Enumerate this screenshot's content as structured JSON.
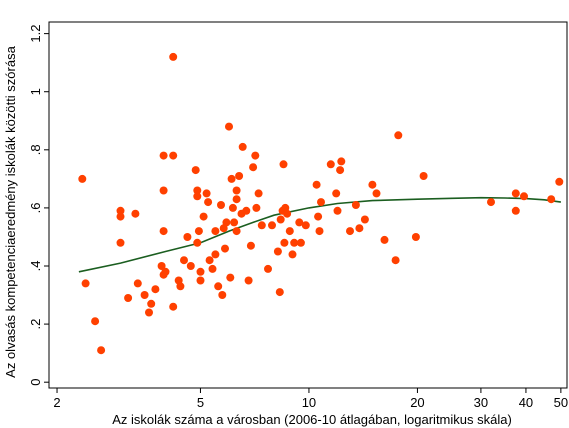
{
  "chart_data": {
    "type": "scatter",
    "title": "",
    "xlabel": "Az iskolák száma a városban (2006-10 átlagában, logaritmikus skála)",
    "ylabel": "Az olvasás kompetenciaeredmény iskolák közötti szórása",
    "x_scale": "log",
    "xlim": [
      1.9,
      52
    ],
    "ylim": [
      -0.02,
      1.24
    ],
    "x_ticks": [
      2,
      5,
      10,
      20,
      30,
      40,
      50
    ],
    "x_tick_labels": [
      "2",
      "5",
      "10",
      "20",
      "30",
      "40",
      "50"
    ],
    "y_ticks": [
      0,
      0.2,
      0.4,
      0.6,
      0.8,
      1,
      1.2
    ],
    "y_tick_labels": [
      "0",
      ".2",
      ".4",
      ".6",
      ".8",
      "1",
      "1.2"
    ],
    "grid": false,
    "legend": "none",
    "marker_color": "#ff4000",
    "fit_color": "#1b5e20",
    "series": [
      {
        "kind": "points",
        "points": [
          [
            2.35,
            0.7
          ],
          [
            2.4,
            0.34
          ],
          [
            2.55,
            0.21
          ],
          [
            2.65,
            0.11
          ],
          [
            3.0,
            0.59
          ],
          [
            3.0,
            0.57
          ],
          [
            3.0,
            0.48
          ],
          [
            3.15,
            0.29
          ],
          [
            3.3,
            0.58
          ],
          [
            3.35,
            0.34
          ],
          [
            3.5,
            0.3
          ],
          [
            3.6,
            0.24
          ],
          [
            3.65,
            0.27
          ],
          [
            3.75,
            0.32
          ],
          [
            3.9,
            0.4
          ],
          [
            3.95,
            0.78
          ],
          [
            3.95,
            0.66
          ],
          [
            3.95,
            0.37
          ],
          [
            3.95,
            0.52
          ],
          [
            4.0,
            0.38
          ],
          [
            4.2,
            1.12
          ],
          [
            4.2,
            0.78
          ],
          [
            4.2,
            0.26
          ],
          [
            4.35,
            0.35
          ],
          [
            4.4,
            0.33
          ],
          [
            4.5,
            0.42
          ],
          [
            4.6,
            0.5
          ],
          [
            4.7,
            0.4
          ],
          [
            4.85,
            0.73
          ],
          [
            4.9,
            0.66
          ],
          [
            4.9,
            0.64
          ],
          [
            4.9,
            0.48
          ],
          [
            4.95,
            0.52
          ],
          [
            5.0,
            0.38
          ],
          [
            5.0,
            0.35
          ],
          [
            5.1,
            0.57
          ],
          [
            5.2,
            0.65
          ],
          [
            5.25,
            0.62
          ],
          [
            5.3,
            0.42
          ],
          [
            5.4,
            0.39
          ],
          [
            5.5,
            0.52
          ],
          [
            5.5,
            0.44
          ],
          [
            5.6,
            0.33
          ],
          [
            5.7,
            0.61
          ],
          [
            5.75,
            0.3
          ],
          [
            5.8,
            0.53
          ],
          [
            5.85,
            0.46
          ],
          [
            5.9,
            0.55
          ],
          [
            6.0,
            0.88
          ],
          [
            6.05,
            0.36
          ],
          [
            6.1,
            0.7
          ],
          [
            6.15,
            0.6
          ],
          [
            6.2,
            0.55
          ],
          [
            6.3,
            0.66
          ],
          [
            6.3,
            0.63
          ],
          [
            6.3,
            0.52
          ],
          [
            6.4,
            0.71
          ],
          [
            6.5,
            0.58
          ],
          [
            6.55,
            0.81
          ],
          [
            6.7,
            0.59
          ],
          [
            6.8,
            0.35
          ],
          [
            6.9,
            0.47
          ],
          [
            7.0,
            0.74
          ],
          [
            7.1,
            0.78
          ],
          [
            7.15,
            0.6
          ],
          [
            7.25,
            0.65
          ],
          [
            7.4,
            0.54
          ],
          [
            7.7,
            0.39
          ],
          [
            7.9,
            0.54
          ],
          [
            8.2,
            0.45
          ],
          [
            8.3,
            0.31
          ],
          [
            8.35,
            0.56
          ],
          [
            8.45,
            0.59
          ],
          [
            8.5,
            0.75
          ],
          [
            8.55,
            0.48
          ],
          [
            8.6,
            0.6
          ],
          [
            8.7,
            0.58
          ],
          [
            8.85,
            0.52
          ],
          [
            9.0,
            0.44
          ],
          [
            9.1,
            0.48
          ],
          [
            9.4,
            0.55
          ],
          [
            9.5,
            0.48
          ],
          [
            9.8,
            0.54
          ],
          [
            10.5,
            0.68
          ],
          [
            10.6,
            0.57
          ],
          [
            10.7,
            0.52
          ],
          [
            10.8,
            0.62
          ],
          [
            11.5,
            0.75
          ],
          [
            11.9,
            0.65
          ],
          [
            12.0,
            0.59
          ],
          [
            12.2,
            0.73
          ],
          [
            12.3,
            0.76
          ],
          [
            13.0,
            0.52
          ],
          [
            13.5,
            0.61
          ],
          [
            13.8,
            0.53
          ],
          [
            14.3,
            0.56
          ],
          [
            15.0,
            0.68
          ],
          [
            15.4,
            0.65
          ],
          [
            16.2,
            0.49
          ],
          [
            17.4,
            0.42
          ],
          [
            17.7,
            0.85
          ],
          [
            19.8,
            0.5
          ],
          [
            20.8,
            0.71
          ],
          [
            32.0,
            0.62
          ],
          [
            37.5,
            0.65
          ],
          [
            37.5,
            0.59
          ],
          [
            39.5,
            0.64
          ],
          [
            47.0,
            0.63
          ],
          [
            49.5,
            0.69
          ]
        ]
      },
      {
        "kind": "fit_line",
        "points": [
          [
            2.3,
            0.38
          ],
          [
            3.0,
            0.41
          ],
          [
            4.0,
            0.45
          ],
          [
            5.0,
            0.48
          ],
          [
            6.0,
            0.52
          ],
          [
            7.0,
            0.55
          ],
          [
            8.0,
            0.575
          ],
          [
            10.0,
            0.6
          ],
          [
            12.0,
            0.615
          ],
          [
            15.0,
            0.625
          ],
          [
            20.0,
            0.63
          ],
          [
            25.0,
            0.633
          ],
          [
            30.0,
            0.635
          ],
          [
            35.0,
            0.634
          ],
          [
            40.0,
            0.632
          ],
          [
            45.0,
            0.628
          ],
          [
            50.0,
            0.62
          ]
        ]
      }
    ]
  }
}
